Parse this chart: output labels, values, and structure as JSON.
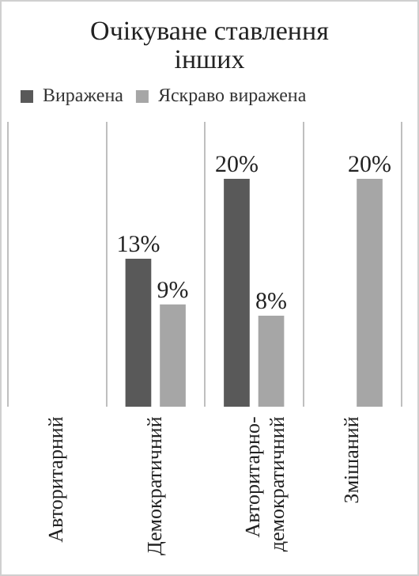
{
  "chart_data": {
    "type": "bar",
    "title": "Очікуване ставлення інших",
    "categories": [
      "Авторитарний",
      "Демократичний",
      "Авторитарно-демократичний",
      "Змішаний"
    ],
    "series": [
      {
        "name": "Виражена",
        "color": "#595959",
        "values": [
          null,
          13,
          20,
          null
        ],
        "value_labels": [
          null,
          "13%",
          "20%",
          null
        ]
      },
      {
        "name": "Яскраво виражена",
        "color": "#a6a6a6",
        "values": [
          null,
          9,
          8,
          20
        ],
        "value_labels": [
          null,
          "9%",
          "8%",
          "20%"
        ]
      }
    ],
    "grid": "x",
    "legend": "top",
    "tick_labels": "x"
  }
}
